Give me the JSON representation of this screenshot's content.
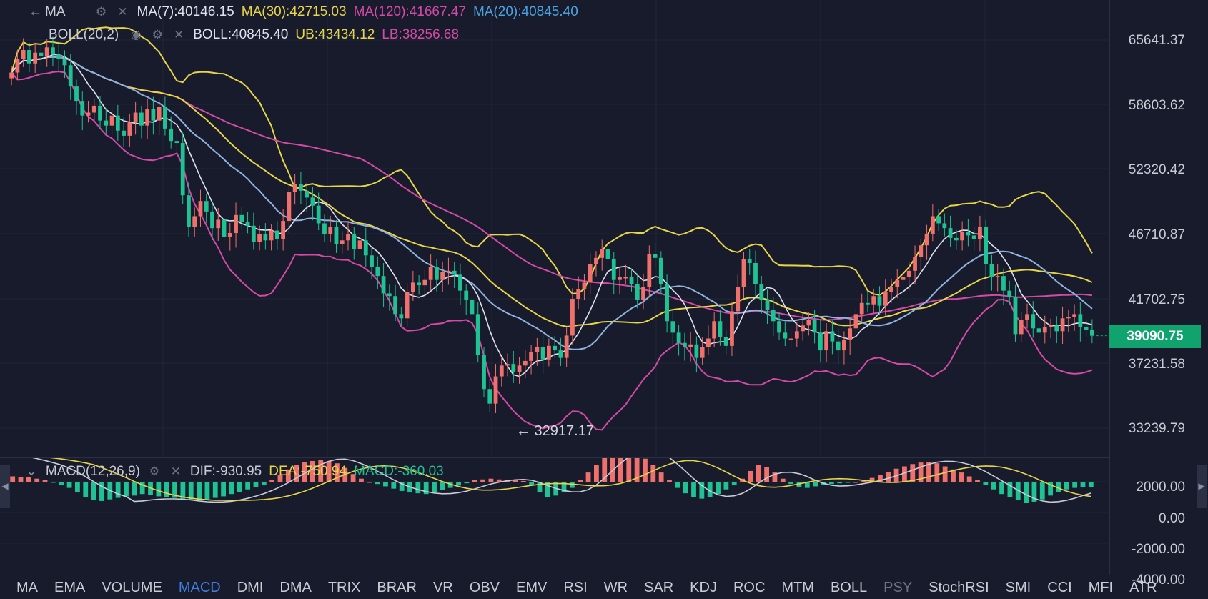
{
  "main_legend": {
    "ma_row": {
      "name": "MA",
      "ma7": "MA(7):40146.15",
      "ma30": "MA(30):42715.03",
      "ma120": "MA(120):41667.47",
      "ma20": "MA(20):40845.40"
    },
    "boll_row": {
      "name": "BOLL(20,2)",
      "boll": "BOLL:40845.40",
      "ub": "UB:43434.12",
      "lb": "LB:38256.68"
    }
  },
  "macd_legend": {
    "name": "MACD(12,26,9)",
    "dif": "DIF:-930.95",
    "dea": "DEA:-750.94",
    "macd": "MACD:-360.03"
  },
  "price_axis": [
    "65641.37",
    "58603.62",
    "52320.42",
    "46710.87",
    "41702.75",
    "37231.58",
    "33239.79"
  ],
  "macd_axis": [
    "2000.00",
    "0.00",
    "-2000.00",
    "-4000.00"
  ],
  "current_price": "39090.75",
  "min_marker": "← 32917.17",
  "tabs": [
    "MA",
    "EMA",
    "VOLUME",
    "MACD",
    "DMI",
    "DMA",
    "TRIX",
    "BRAR",
    "VR",
    "OBV",
    "EMV",
    "RSI",
    "WR",
    "SAR",
    "KDJ",
    "ROC",
    "MTM",
    "BOLL",
    "PSY",
    "StochRSI",
    "SMI",
    "CCI",
    "MFI",
    "ATR"
  ],
  "active_tab": "MACD",
  "colors": {
    "background": "#171b2b",
    "up": "#f0706c",
    "down": "#1fc293",
    "ma7": "#dfe2ee",
    "ma30": "#e8d54a",
    "ma120": "#d54aa7",
    "ma20": "#8fb3e0",
    "boll_mid": "#e8d54a",
    "boll_ub": "#e8d54a",
    "boll_lb": "#d54aa7",
    "dif": "#c9cdd8",
    "dea": "#e8d54a",
    "price_tag": "#11a36e",
    "active_tab": "#3f7fe0"
  },
  "chart_data": [
    {
      "type": "line",
      "chart": "main",
      "scale": "log",
      "y_ticks": [
        65641.37,
        58603.62,
        52320.42,
        46710.87,
        41702.75,
        37231.58,
        33239.79
      ],
      "current": 39090.75,
      "min": 32917.17,
      "candles_close": [
        62000,
        63500,
        64500,
        63000,
        64200,
        63800,
        64800,
        64000,
        63500,
        62800,
        60500,
        59000,
        57500,
        57800,
        58500,
        57000,
        56500,
        57500,
        56000,
        55500,
        56800,
        57800,
        56500,
        58200,
        57000,
        58400,
        56200,
        55000,
        54800,
        50000,
        47300,
        48200,
        49500,
        48600,
        47200,
        47900,
        46500,
        46800,
        48300,
        47700,
        47400,
        46100,
        46700,
        46200,
        47000,
        46300,
        47800,
        50300,
        51000,
        50400,
        49800,
        49100,
        47600,
        46700,
        47300,
        45900,
        46200,
        46700,
        45500,
        46200,
        45000,
        44100,
        43400,
        42100,
        41900,
        40600,
        40300,
        42200,
        42900,
        42700,
        43100,
        44100,
        43100,
        43700,
        43800,
        43500,
        42300,
        41600,
        40600,
        37800,
        35600,
        34700,
        36400,
        37100,
        37200,
        36700,
        37100,
        37400,
        38000,
        38300,
        37500,
        38400,
        38100,
        37600,
        39100,
        41700,
        42400,
        42900,
        44300,
        44800,
        45500,
        44700,
        43100,
        43300,
        43300,
        42800,
        41600,
        42600,
        45100,
        44800,
        42800,
        40100,
        39300,
        38600,
        38300,
        38500,
        37600,
        38300,
        38900,
        40100,
        39000,
        38400,
        40800,
        42600,
        44700,
        44400,
        42800,
        41600,
        40900,
        40100,
        39300,
        38900,
        38900,
        39400,
        39800,
        40200,
        39300,
        38100,
        39400,
        38700,
        38100,
        38800,
        39600,
        40600,
        41400,
        41300,
        41900,
        41200,
        42200,
        42600,
        43100,
        43300,
        43800,
        44900,
        45800,
        46700,
        48200,
        47600,
        47200,
        46400,
        46200,
        46900,
        46600,
        46300,
        47300,
        44300,
        43300,
        43400,
        42300,
        41800,
        39200,
        40200,
        40600,
        39600,
        39300,
        39700,
        39800,
        39400,
        40300,
        40400,
        40600,
        39700,
        39500,
        39090.75
      ]
    },
    {
      "type": "bar",
      "chart": "macd",
      "y_ticks": [
        2000,
        0,
        -2000,
        -4000
      ],
      "series": [
        {
          "name": "MACD",
          "values": [
            350,
            320,
            280,
            200,
            100,
            -50,
            -200,
            -400,
            -700,
            -1000,
            -1200,
            -1250,
            -1150,
            -1050,
            -950,
            -900,
            -800,
            -850,
            -950,
            -1000,
            -1050,
            -1100,
            -1150,
            -1200,
            -1150,
            -1050,
            -950,
            -800,
            -650,
            -500,
            -350,
            -200,
            100,
            450,
            800,
            1100,
            1300,
            1350,
            1400,
            1350,
            1200,
            900,
            500,
            200,
            0,
            -150,
            -300,
            -450,
            -600,
            -700,
            -750,
            -800,
            -700,
            -550,
            -400,
            -250,
            -100,
            100,
            150,
            200,
            150,
            120,
            100,
            50,
            -200,
            -700,
            -1000,
            -900,
            -700,
            -400,
            100,
            600,
            1100,
            1600,
            2000,
            2050,
            2000,
            1800,
            1500,
            1100,
            600,
            100,
            -400,
            -750,
            -1000,
            -1100,
            -1000,
            -800,
            -500,
            -200,
            200,
            700,
            1100,
            950,
            600,
            200,
            -150,
            -350,
            -400,
            -300,
            -200,
            -150,
            -100,
            -50,
            0,
            100,
            250,
            450,
            650,
            850,
            1000,
            1150,
            1250,
            1300,
            1200,
            1000,
            800,
            600,
            350,
            100,
            -200,
            -500,
            -800,
            -1000,
            -1200,
            -1350,
            -1300,
            -1150,
            -900,
            -650,
            -500,
            -400,
            -350,
            -360.03
          ]
        }
      ],
      "dif_final": -930.95,
      "dea_final": -750.94
    }
  ]
}
